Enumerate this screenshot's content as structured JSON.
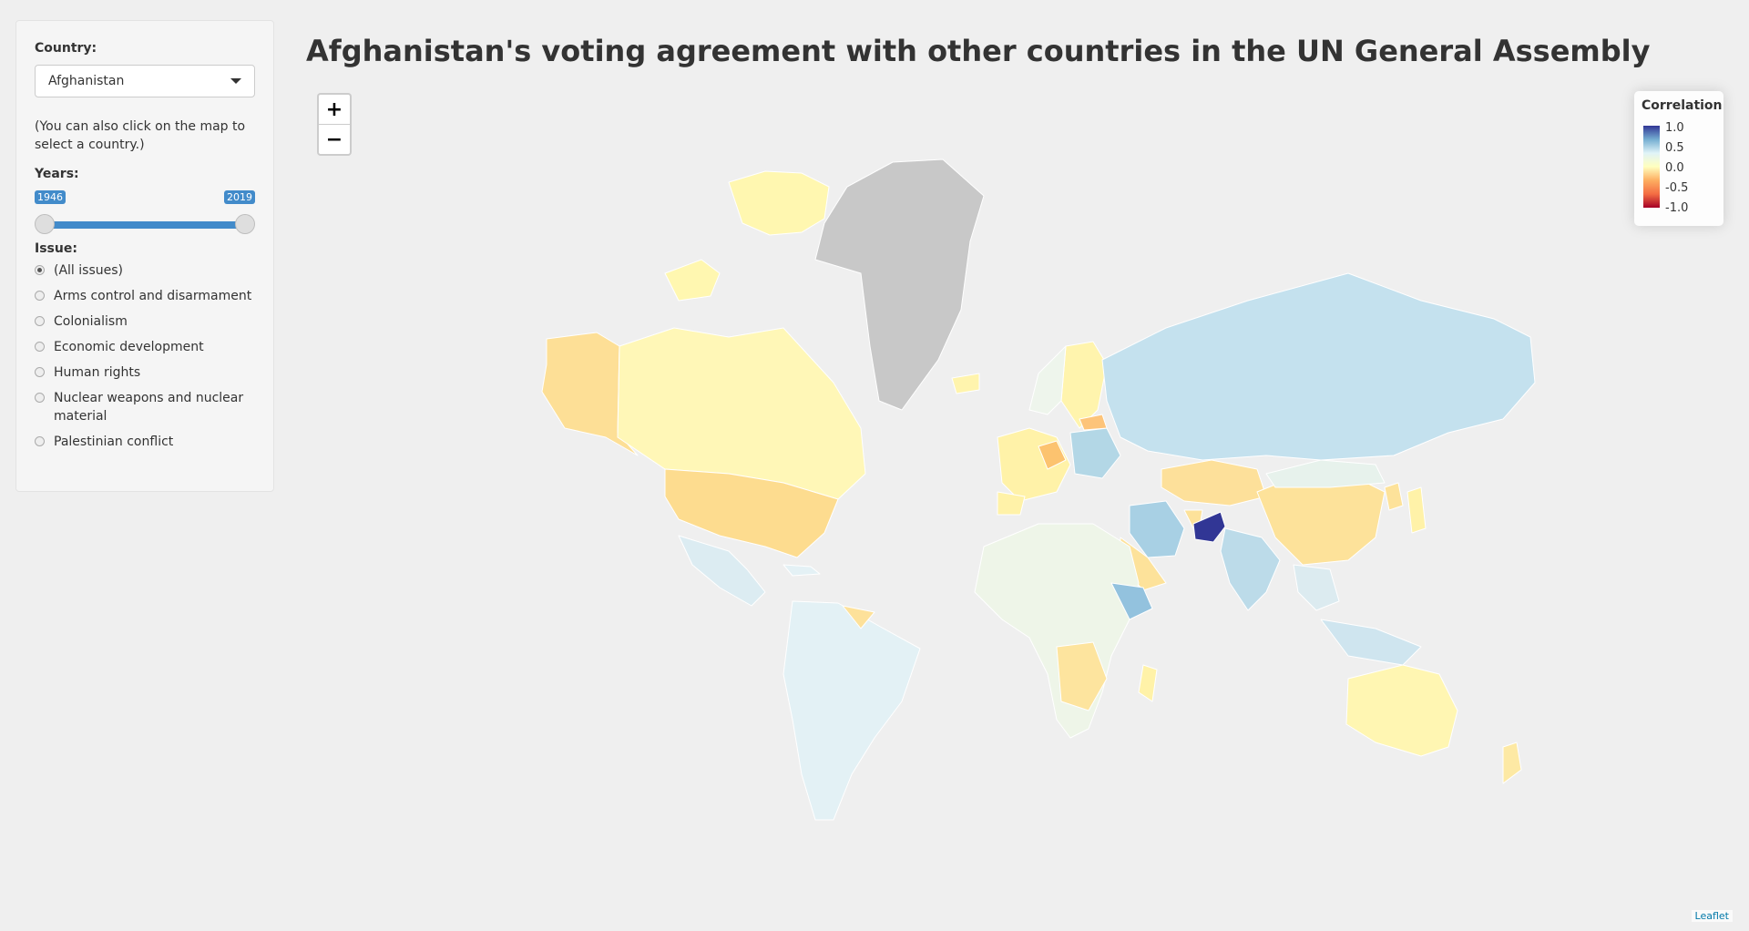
{
  "title": "Afghanistan's voting agreement with other countries in the UN General Assembly",
  "sidebar": {
    "country_label": "Country:",
    "country_value": "Afghanistan",
    "help": "(You can also click on the map to select a country.)",
    "years_label": "Years:",
    "year_min": "1946",
    "year_max": "2019",
    "issue_label": "Issue:",
    "issues": [
      {
        "label": "(All issues)",
        "checked": true
      },
      {
        "label": "Arms control and disarmament",
        "checked": false
      },
      {
        "label": "Colonialism",
        "checked": false
      },
      {
        "label": "Economic development",
        "checked": false
      },
      {
        "label": "Human rights",
        "checked": false
      },
      {
        "label": "Nuclear weapons and nuclear material",
        "checked": false
      },
      {
        "label": "Palestinian conflict",
        "checked": false
      }
    ]
  },
  "zoom": {
    "in_label": "+",
    "out_label": "−"
  },
  "legend": {
    "title": "Correlation",
    "ticks": [
      "1.0",
      "0.5",
      "0.0",
      "-0.5",
      "-1.0"
    ]
  },
  "attribution": "Leaflet",
  "colors": {
    "accent": "#428bca",
    "scale_high": "#313695",
    "scale_mid": "#ffffbf",
    "scale_low": "#a50026",
    "no_data": "#cccccc"
  }
}
